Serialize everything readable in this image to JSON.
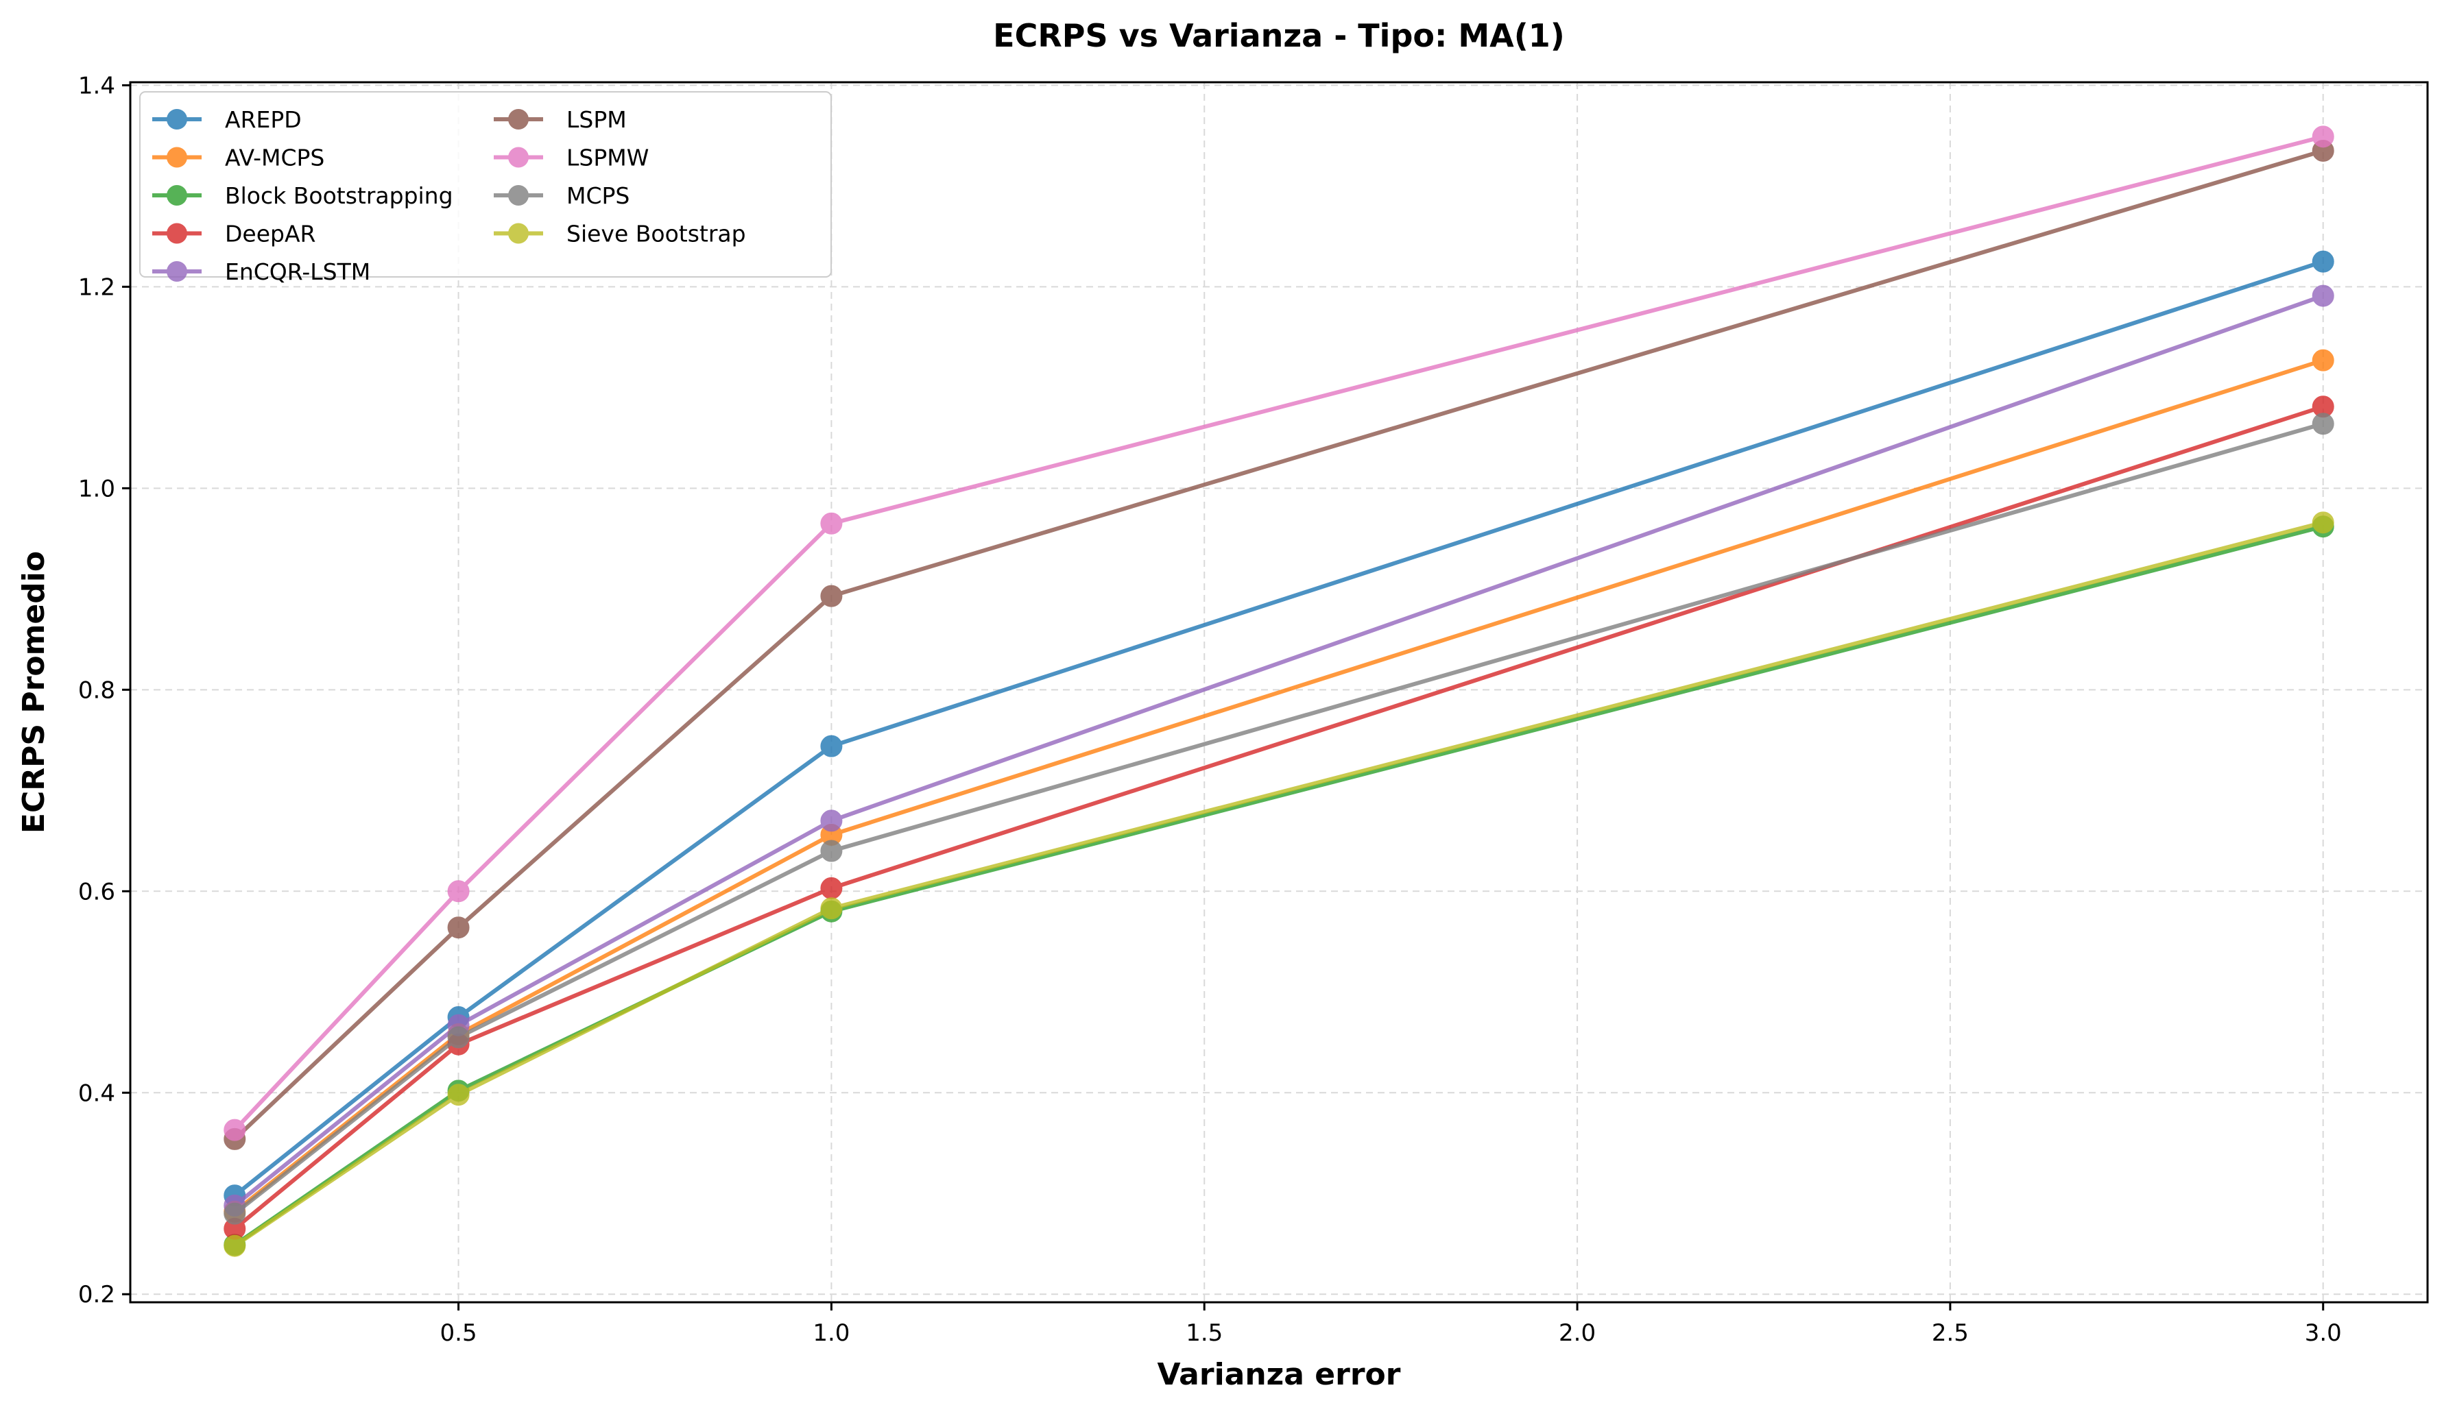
{
  "chart_data": {
    "type": "line",
    "title": "ECRPS vs Varianza - Tipo: MA(1)",
    "xlabel": "Varianza error",
    "ylabel": "ECRPS Promedio",
    "xlim": [
      0.06,
      3.14
    ],
    "ylim": [
      0.192,
      1.403
    ],
    "xticks": [
      0.5,
      1.0,
      1.5,
      2.0,
      2.5,
      3.0
    ],
    "xtick_labels": [
      "0.5",
      "1.0",
      "1.5",
      "2.0",
      "2.5",
      "3.0"
    ],
    "yticks": [
      0.2,
      0.4,
      0.6,
      0.8,
      1.0,
      1.2,
      1.4
    ],
    "ytick_labels": [
      "0.2",
      "0.4",
      "0.6",
      "0.8",
      "1.0",
      "1.2",
      "1.4"
    ],
    "grid": true,
    "legend_position": "top-left",
    "x": [
      0.2,
      0.5,
      1.0,
      3.0
    ],
    "series": [
      {
        "name": "AREPD",
        "color": "#1f77b4",
        "values": [
          0.298,
          0.475,
          0.744,
          1.225
        ]
      },
      {
        "name": "AV-MCPS",
        "color": "#ff7f0e",
        "values": [
          0.282,
          0.458,
          0.656,
          1.127
        ]
      },
      {
        "name": "Block Bootstrapping",
        "color": "#2ca02c",
        "values": [
          0.249,
          0.402,
          0.58,
          0.962
        ]
      },
      {
        "name": "DeepAR",
        "color": "#d62728",
        "values": [
          0.265,
          0.448,
          0.603,
          1.081
        ]
      },
      {
        "name": "EnCQR-LSTM",
        "color": "#9467bd",
        "values": [
          0.288,
          0.467,
          0.67,
          1.191
        ]
      },
      {
        "name": "LSPM",
        "color": "#8c564b",
        "values": [
          0.354,
          0.564,
          0.893,
          1.335
        ]
      },
      {
        "name": "LSPMW",
        "color": "#e377c2",
        "values": [
          0.363,
          0.6,
          0.965,
          1.349
        ]
      },
      {
        "name": "MCPS",
        "color": "#7f7f7f",
        "values": [
          0.28,
          0.455,
          0.64,
          1.064
        ]
      },
      {
        "name": "Sieve Bootstrap",
        "color": "#bcbd22",
        "values": [
          0.248,
          0.398,
          0.583,
          0.966
        ]
      }
    ]
  }
}
